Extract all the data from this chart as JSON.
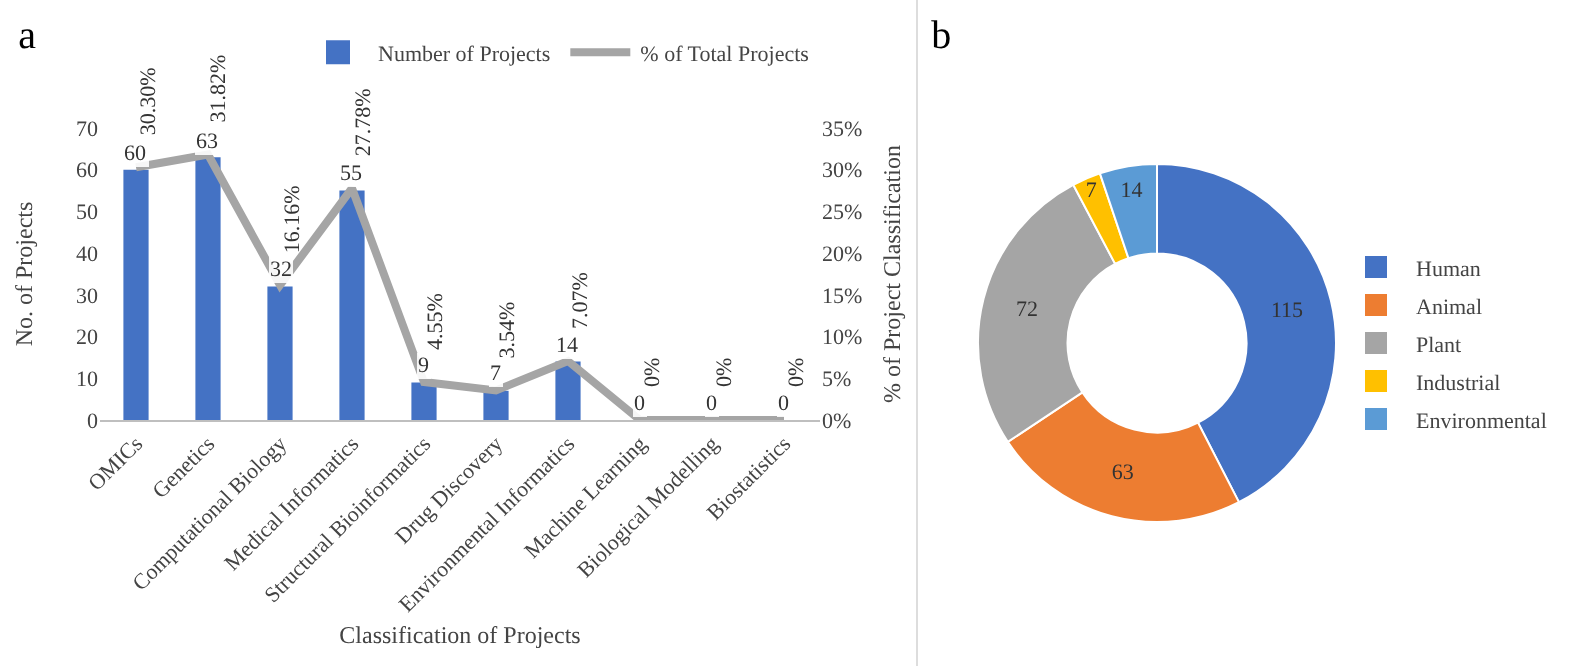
{
  "chart_data": [
    {
      "type": "bar",
      "title": "a",
      "xlabel": "Classification of Projects",
      "ylabel": "No. of Projects",
      "y2label": "% of Project Classification",
      "categories": [
        "OMICs",
        "Genetics",
        "Computational Biology",
        "Medical Informatics",
        "Structural Bioinformatics",
        "Drug Discovery",
        "Environmental Informatics",
        "Machine Learning",
        "Biological Modelling",
        "Biostatistics"
      ],
      "series": [
        {
          "name": "Number of Projects",
          "type": "bar",
          "color": "#4472c4",
          "values": [
            60,
            63,
            32,
            55,
            9,
            7,
            14,
            0,
            0,
            0
          ],
          "value_labels": [
            "60",
            "63",
            "32",
            "55",
            "9",
            "7",
            "14",
            "0",
            "0",
            "0"
          ]
        },
        {
          "name": "% of Total Projects",
          "type": "line",
          "axis": "y2",
          "color": "#a5a5a5",
          "values": [
            30.3,
            31.82,
            16.16,
            27.78,
            4.55,
            3.54,
            7.07,
            0,
            0,
            0
          ],
          "value_labels": [
            "30.30%",
            "31.82%",
            "16.16%",
            "27.78%",
            "4.55%",
            "3.54%",
            "7.07%",
            "0%",
            "0%",
            "0%"
          ]
        }
      ],
      "ylim": [
        0,
        70
      ],
      "yticks": [
        0,
        10,
        20,
        30,
        40,
        50,
        60,
        70
      ],
      "y2lim": [
        0,
        35
      ],
      "y2ticks": [
        {
          "value": 0,
          "label": "0%"
        },
        {
          "value": 5,
          "label": "5%"
        },
        {
          "value": 10,
          "label": "10%"
        },
        {
          "value": 15,
          "label": "15%"
        },
        {
          "value": 20,
          "label": "20%"
        },
        {
          "value": 25,
          "label": "25%"
        },
        {
          "value": 30,
          "label": "30%"
        },
        {
          "value": 35,
          "label": "35%"
        }
      ],
      "grid": false,
      "legend": "top right",
      "marker": "none",
      "line_style": "solid"
    },
    {
      "type": "donut",
      "title": "b",
      "categories": [
        "Human",
        "Animal",
        "Plant",
        "Industrial",
        "Environmental"
      ],
      "values": [
        115,
        63,
        72,
        7,
        14
      ],
      "colors": [
        "#4472c4",
        "#ed7d31",
        "#a5a5a5",
        "#ffc000",
        "#5b9bd5"
      ],
      "data_labels": true,
      "legend": "right"
    }
  ]
}
